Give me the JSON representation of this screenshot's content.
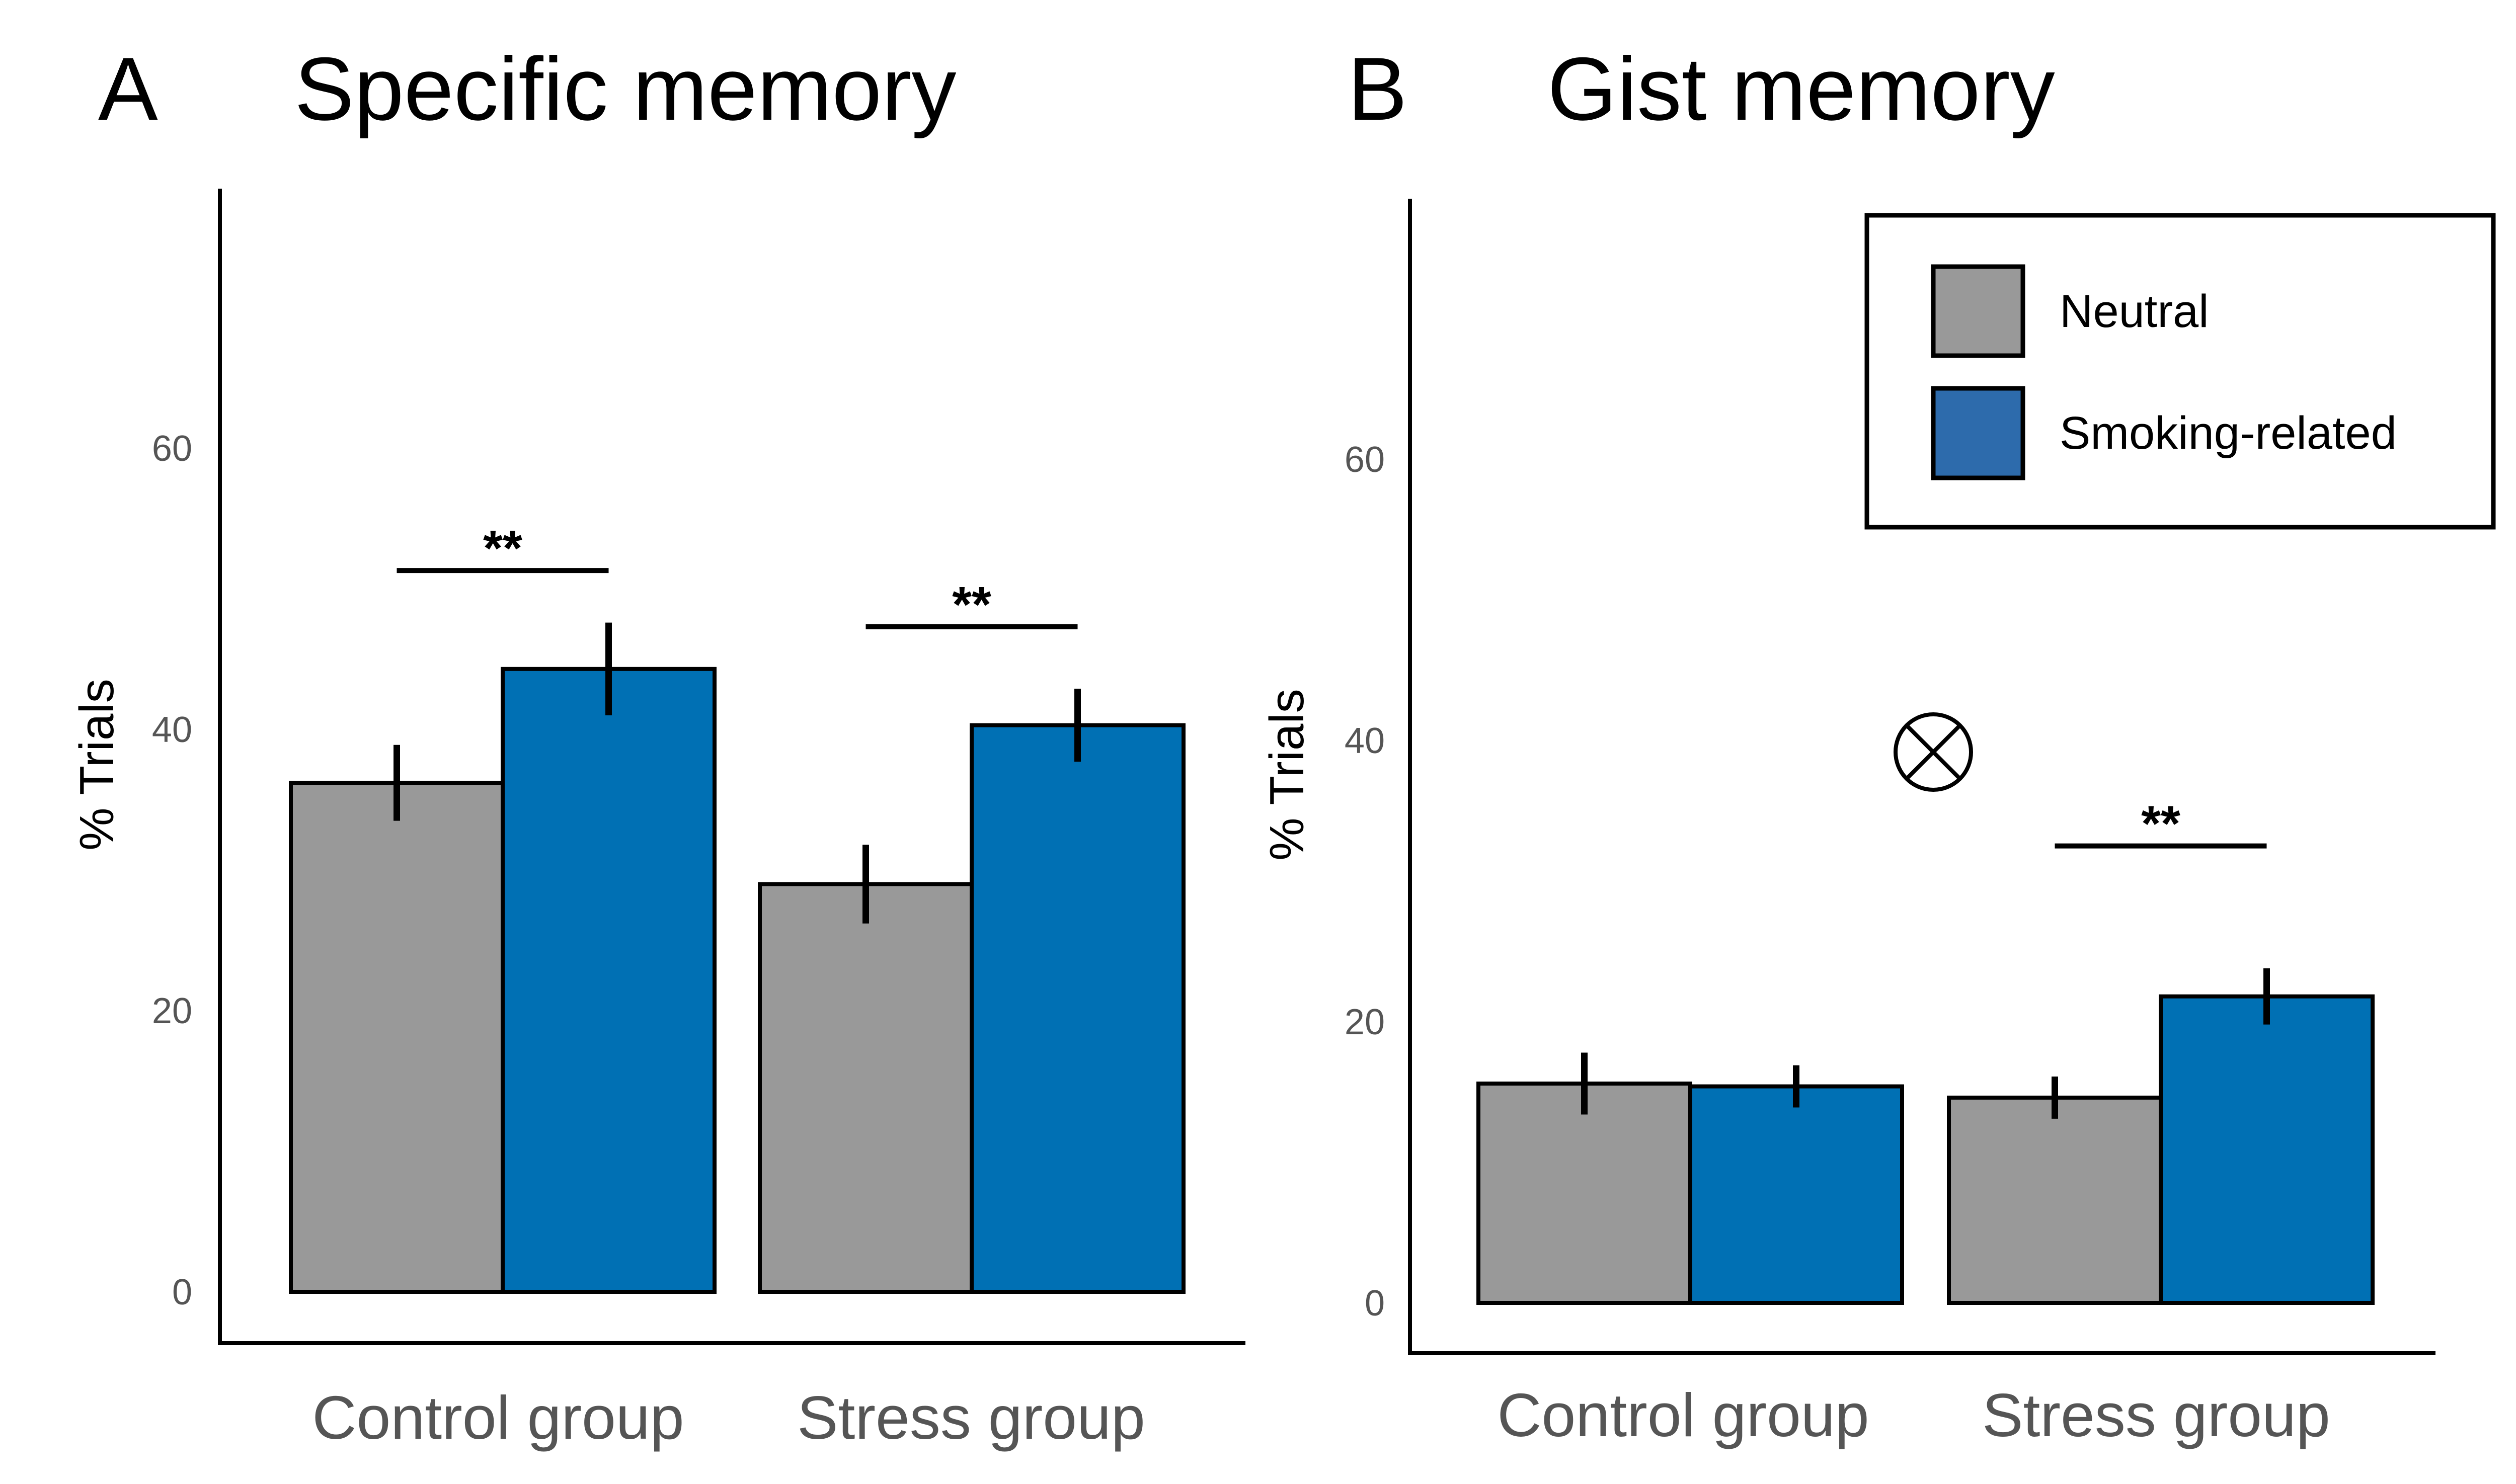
{
  "colors": {
    "neutral": "#999999",
    "smoking": "#0070b4",
    "legend_smoking": "#2d6bac"
  },
  "legend": {
    "items": [
      {
        "label": "Neutral",
        "color_key": "neutral"
      },
      {
        "label": "Smoking-related",
        "color_key": "legend_smoking"
      }
    ]
  },
  "interaction_symbol": "⊗",
  "chart_data": [
    {
      "type": "bar",
      "panel_letter": "A",
      "title": "Specific memory",
      "ylabel": "% Trials",
      "xlabel": "",
      "ylim": [
        0,
        78
      ],
      "yticks": [
        0,
        20,
        40,
        60
      ],
      "grid": false,
      "legend": "none",
      "categories": [
        "Control group",
        "Stress group"
      ],
      "series": [
        {
          "name": "Neutral",
          "color_key": "neutral",
          "values": [
            36.2,
            29.0
          ],
          "errors": [
            2.7,
            2.8
          ]
        },
        {
          "name": "Smoking-related",
          "color_key": "smoking",
          "values": [
            44.3,
            40.3
          ],
          "errors": [
            3.3,
            2.6
          ]
        }
      ],
      "significance": [
        {
          "category": 0,
          "label": "**",
          "y": 51.3
        },
        {
          "category": 1,
          "label": "**",
          "y": 47.3
        }
      ]
    },
    {
      "type": "bar",
      "panel_letter": "B",
      "title": "Gist memory",
      "ylabel": "% Trials",
      "xlabel": "",
      "ylim": [
        0,
        78
      ],
      "yticks": [
        0,
        20,
        40,
        60
      ],
      "grid": false,
      "legend": "top-right",
      "categories": [
        "Control group",
        "Stress group"
      ],
      "series": [
        {
          "name": "Neutral",
          "color_key": "neutral",
          "values": [
            15.6,
            14.6
          ],
          "errors": [
            2.2,
            1.5
          ]
        },
        {
          "name": "Smoking-related",
          "color_key": "smoking",
          "values": [
            15.4,
            21.8
          ],
          "errors": [
            1.5,
            2.0
          ]
        }
      ],
      "significance": [
        {
          "category": 1,
          "label": "**",
          "y": 32.5
        }
      ],
      "interaction_marker": true
    }
  ]
}
